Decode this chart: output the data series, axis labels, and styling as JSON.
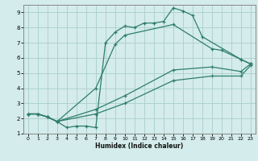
{
  "xlabel": "Humidex (Indice chaleur)",
  "bg_color": "#d4eceb",
  "grid_color": "#aacece",
  "line_color": "#2e7d6e",
  "xlim": [
    -0.5,
    23.5
  ],
  "ylim": [
    1,
    9.5
  ],
  "xticks": [
    0,
    1,
    2,
    3,
    4,
    5,
    6,
    7,
    8,
    9,
    10,
    11,
    12,
    13,
    14,
    15,
    16,
    17,
    18,
    19,
    20,
    21,
    22,
    23
  ],
  "yticks": [
    1,
    2,
    3,
    4,
    5,
    6,
    7,
    8,
    9
  ],
  "line1_x": [
    0,
    1,
    2,
    3,
    4,
    5,
    6,
    7,
    8,
    9,
    10,
    11,
    12,
    13,
    14,
    15,
    16,
    17,
    18,
    22,
    23
  ],
  "line1_y": [
    2.3,
    2.3,
    2.1,
    1.8,
    1.4,
    1.5,
    1.5,
    1.4,
    7.0,
    7.7,
    8.1,
    8.0,
    8.3,
    8.3,
    8.4,
    9.3,
    9.1,
    8.8,
    7.4,
    5.9,
    5.6
  ],
  "line2_x": [
    0,
    1,
    2,
    3,
    7,
    9,
    10,
    15,
    19,
    20,
    22,
    23
  ],
  "line2_y": [
    2.3,
    2.3,
    2.1,
    1.8,
    4.0,
    6.9,
    7.5,
    8.2,
    6.6,
    6.5,
    5.9,
    5.6
  ],
  "line3_x": [
    0,
    1,
    2,
    3,
    7,
    10,
    15,
    19,
    22,
    23
  ],
  "line3_y": [
    2.3,
    2.3,
    2.1,
    1.8,
    2.6,
    3.5,
    5.2,
    5.4,
    5.1,
    5.6
  ],
  "line4_x": [
    0,
    1,
    2,
    3,
    7,
    10,
    15,
    19,
    22,
    23
  ],
  "line4_y": [
    2.3,
    2.3,
    2.1,
    1.8,
    2.3,
    3.0,
    4.5,
    4.8,
    4.8,
    5.5
  ]
}
